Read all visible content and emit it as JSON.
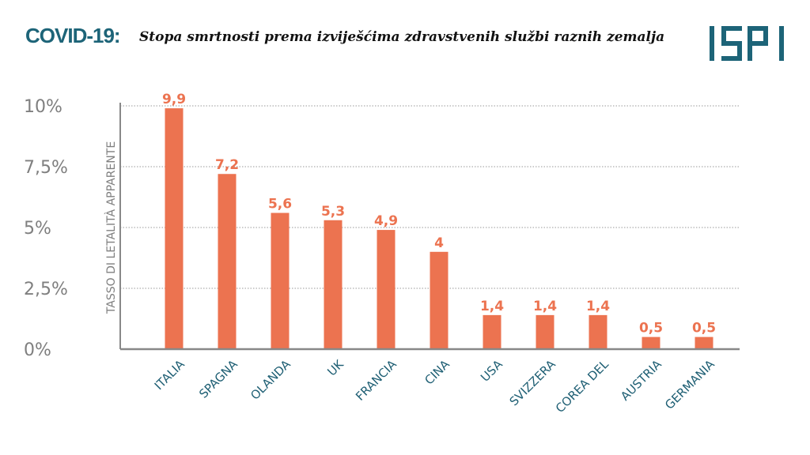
{
  "header": {
    "title": "COVID-19:",
    "subtitle": "Stopa smrtnosti prema izviješćima zdravstvenih službi raznih zemalja",
    "logo_text": "ISPI"
  },
  "colors": {
    "bar": "#ec7350",
    "title": "#1d6478",
    "category_label": "#1d5e73",
    "tick_label": "#7f7f7f",
    "grid": "#999999"
  },
  "chart_data": {
    "type": "bar",
    "title": "Stopa smrtnosti prema izviješćima zdravstvenih službi raznih zemalja",
    "ylabel": "TASSO DI LETALITÀ APPARENTE",
    "xlabel": "",
    "ylim": [
      0,
      10
    ],
    "yticks": [
      0,
      2.5,
      5,
      7.5,
      10
    ],
    "ytick_labels": [
      "0%",
      "2,5%",
      "5%",
      "7,5%",
      "10%"
    ],
    "grid": "horizontal dotted",
    "categories": [
      "ITALIA",
      "SPAGNA",
      "OLANDA",
      "UK",
      "FRANCIA",
      "CINA",
      "USA",
      "SVIZZERA",
      "COREA DEL",
      "AUSTRIA",
      "GERMANIA"
    ],
    "values": [
      9.9,
      7.2,
      5.6,
      5.3,
      4.9,
      4,
      1.4,
      1.4,
      1.4,
      0.5,
      0.5
    ],
    "data_labels": [
      "9,9",
      "7,2",
      "5,6",
      "5,3",
      "4,9",
      "4",
      "1,4",
      "1,4",
      "1,4",
      "0,5",
      "0,5"
    ]
  }
}
